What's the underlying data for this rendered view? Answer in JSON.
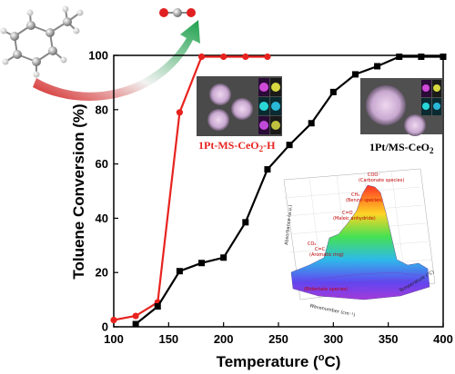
{
  "chart_data": {
    "type": "line",
    "xlabel": "Temperature (",
    "xlabel_unit": "o",
    "xlabel_tail": "C)",
    "ylabel": "Toluene Conversion (%)",
    "xlim": [
      100,
      400
    ],
    "ylim": [
      0,
      100
    ],
    "xticks": [
      "100",
      "150",
      "200",
      "250",
      "300",
      "350",
      "400"
    ],
    "yticks": [
      "0",
      "20",
      "40",
      "60",
      "80",
      "100"
    ],
    "grid": false,
    "series": [
      {
        "name": "1Pt-MS-CeO2-H",
        "color": "#e8231f",
        "x": [
          100,
          120,
          140,
          160,
          180,
          200,
          220,
          240
        ],
        "y": [
          2.5,
          4,
          9,
          79,
          99.5,
          99.5,
          99.5,
          99.5
        ]
      },
      {
        "name": "1Pt/MS-CeO2",
        "color": "#000000",
        "x": [
          120,
          140,
          160,
          180,
          200,
          220,
          240,
          260,
          280,
          300,
          320,
          340,
          360,
          380,
          400
        ],
        "y": [
          1,
          7.5,
          20.5,
          23.5,
          25.5,
          38.5,
          58,
          67,
          75,
          86.5,
          93,
          96,
          99.5,
          99.5,
          99.5
        ]
      }
    ]
  },
  "labels": {
    "sample_a_main": "1Pt-MS-CeO",
    "sample_a_sub": "2",
    "sample_a_tail": "-H",
    "sample_b_main": "1Pt/MS-CeO",
    "sample_b_sub": "2"
  },
  "inset_3d": {
    "annotations": [
      "COO⁻",
      "(Carbonate species)",
      "CH₂",
      "(Benzyl species)",
      "C=O",
      "(Maleic anhydride)",
      "C=C",
      "(Aromatic ring)",
      "CO₂",
      "(Bidentate species)",
      "Absorbance (a.u.)",
      "Temperature (°C)",
      "Wavenumber (cm⁻¹)"
    ]
  }
}
